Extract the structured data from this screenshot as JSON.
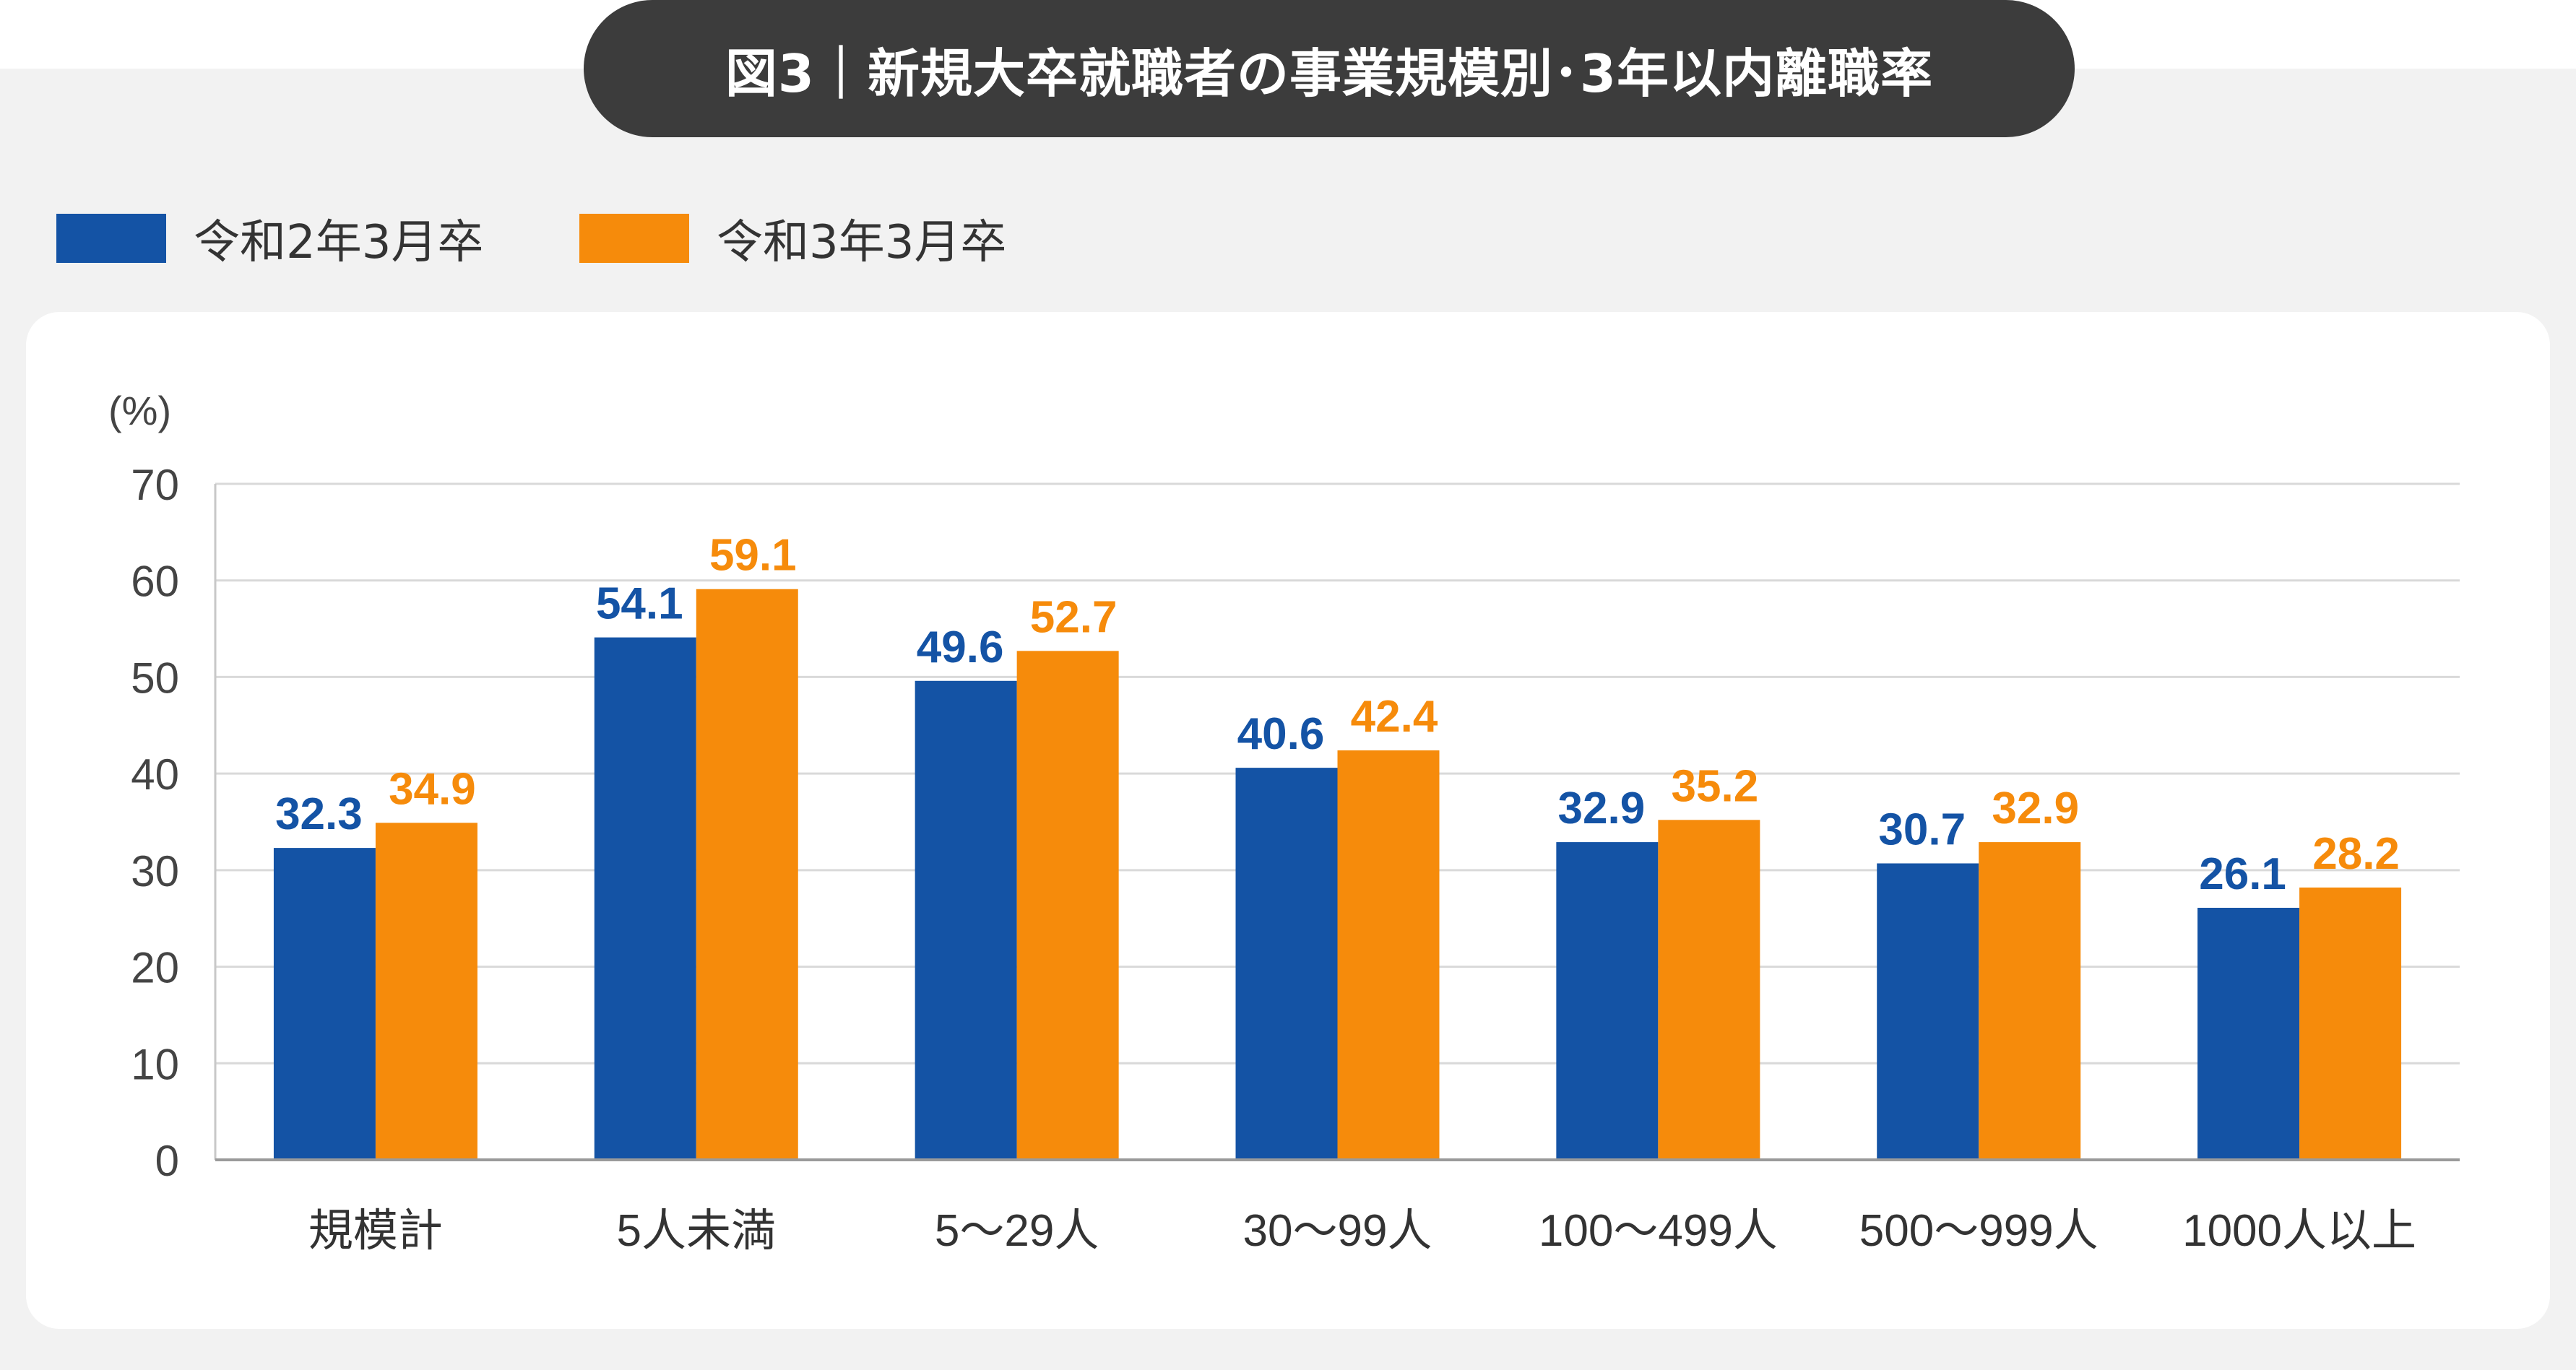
{
  "title": "図3｜新規大卒就職者の事業規模別･3年以内離職率",
  "legend": [
    {
      "label": "令和2年3月卒",
      "color": "#1453a5"
    },
    {
      "label": "令和3年3月卒",
      "color": "#f68b0b"
    }
  ],
  "chart_data": {
    "type": "bar",
    "ylabel": "(%)",
    "ylim": [
      0,
      70
    ],
    "yticks": [
      0,
      10,
      20,
      30,
      40,
      50,
      60,
      70
    ],
    "grid": true,
    "categories": [
      "規模計",
      "5人未満",
      "5～29人",
      "30～99人",
      "100～499人",
      "500～999人",
      "1000人以上"
    ],
    "series": [
      {
        "name": "令和2年3月卒",
        "color": "#1453a5",
        "values": [
          32.3,
          54.1,
          49.6,
          40.6,
          32.9,
          30.7,
          26.1
        ]
      },
      {
        "name": "令和3年3月卒",
        "color": "#f68b0b",
        "values": [
          34.9,
          59.1,
          52.7,
          42.4,
          35.2,
          32.9,
          28.2
        ]
      }
    ]
  }
}
